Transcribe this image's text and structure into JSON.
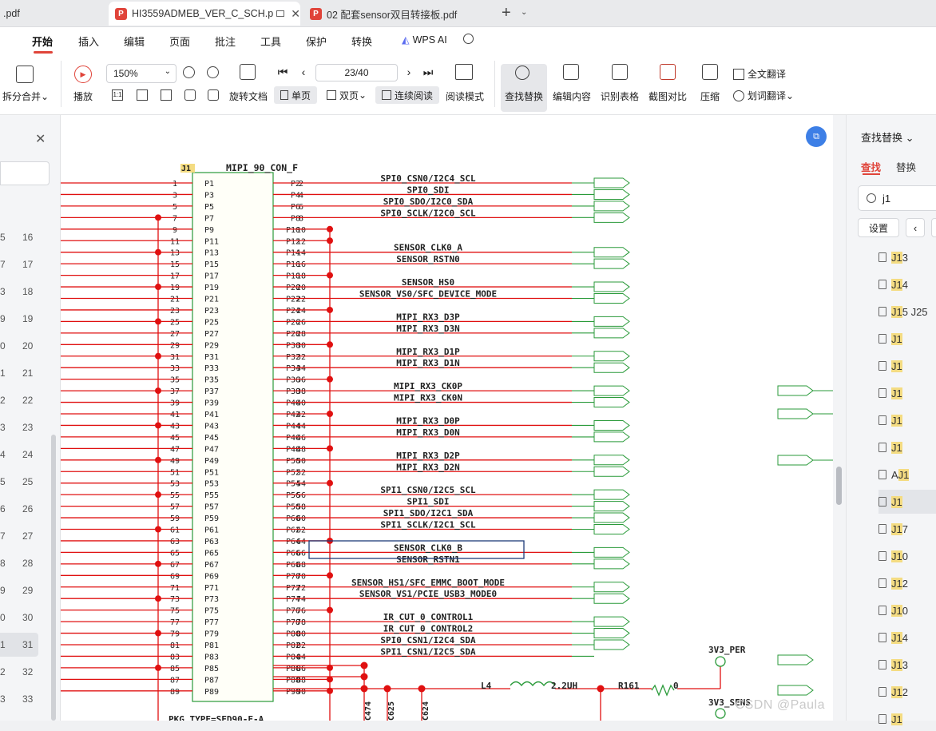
{
  "tabs": [
    {
      "label": ".pdf",
      "active": false
    },
    {
      "label": "HI3559ADMEB_VER_C_SCH.p",
      "active": true
    },
    {
      "label": "02 配套sensor双目转接板.pdf",
      "active": false
    }
  ],
  "menu": [
    "开始",
    "插入",
    "编辑",
    "页面",
    "批注",
    "工具",
    "保护",
    "转换"
  ],
  "wps_ai_label": "WPS AI",
  "ribbon": {
    "split_merge": "拆分合并",
    "play": "播放",
    "zoom": "150%",
    "rotate": "旋转文档",
    "single_page": "单页",
    "double_page": "双页",
    "continuous": "连续阅读",
    "read_mode": "阅读模式",
    "find_replace": "查找替换",
    "edit_content": "编辑内容",
    "recognize_table": "识别表格",
    "screenshot_compare": "截图对比",
    "compress": "压缩",
    "full_translate": "全文翻译",
    "word_translate": "划词翻译",
    "page_indicator": "23/40"
  },
  "thumb_numbers": [
    "16",
    "17",
    "18",
    "19",
    "20",
    "21",
    "22",
    "23",
    "24",
    "25",
    "26",
    "27",
    "28",
    "29",
    "30",
    "31",
    "32",
    "33"
  ],
  "left_edge_digits": [
    "5",
    "7",
    "3",
    "9",
    "0",
    "1",
    "2",
    "3",
    "4",
    "5",
    "6",
    "7",
    "8",
    "9",
    "0",
    "1",
    "2",
    "3"
  ],
  "selected_thumb": "31",
  "right_panel": {
    "title": "查找替换",
    "tab_find": "查找",
    "tab_replace": "替换",
    "search_value": "j1",
    "settings_label": "设置",
    "results": [
      "J13",
      "J14",
      "J15 J25",
      "J1",
      "J1",
      "J1",
      "J1",
      "J1",
      "AJ1",
      "J1",
      "J17",
      "J10",
      "J12",
      "J10",
      "J14",
      "J13",
      "J12",
      "J1"
    ],
    "selected_result": 9
  },
  "schematic": {
    "connector_ref": "J1",
    "connector_name": "MIPI_90_CON_F",
    "pkg_type": "PKG_TYPE=SFD90-F-A",
    "signals": [
      "SPI0_CSN0/I2C4_SCL",
      "SPI0_SDI",
      "SPI0_SDO/I2C0_SDA",
      "SPI0_SCLK/I2C0_SCL",
      "",
      "",
      "SENSOR_CLK0_A",
      "SENSOR_RSTN0",
      "",
      "SENSOR_HS0",
      "SENSOR_VS0/SFC_DEVICE_MODE",
      "",
      "MIPI_RX3_D3P",
      "MIPI_RX3_D3N",
      "",
      "MIPI_RX3_D1P",
      "MIPI_RX3_D1N",
      "",
      "MIPI_RX3_CK0P",
      "MIPI_RX3_CK0N",
      "",
      "MIPI_RX3_D0P",
      "MIPI_RX3_D0N",
      "",
      "MIPI_RX3_D2P",
      "MIPI_RX3_D2N",
      "",
      "SPI1_CSN0/I2C5_SCL",
      "SPI1_SDI",
      "SPI1_SDO/I2C1_SDA",
      "SPI1_SCLK/I2C1_SCL",
      "",
      "SENSOR_CLK0_B",
      "SENSOR_RSTN1",
      "",
      "SENSOR_HS1/SFC_EMMC_BOOT_MODE",
      "SENSOR_VS1/PCIE_USB3_MODE0",
      "",
      "IR_CUT_0_CONTROL1",
      "IR_CUT_0_CONTROL2",
      "SPI0_CSN1/I2C4_SDA",
      "SPI1_CSN1/I2C5_SDA",
      "",
      "",
      "",
      ""
    ],
    "inductor_ref": "L4",
    "inductor_value": "2.2UH",
    "resistor_ref": "R161",
    "resistor_value": "0",
    "net_3v3_per": "3V3_PER",
    "net_3v3_sens": "3V3_SENS",
    "cap_labels": [
      "C474",
      "C625",
      "C624"
    ]
  },
  "watermark": "CSDN @Paula"
}
